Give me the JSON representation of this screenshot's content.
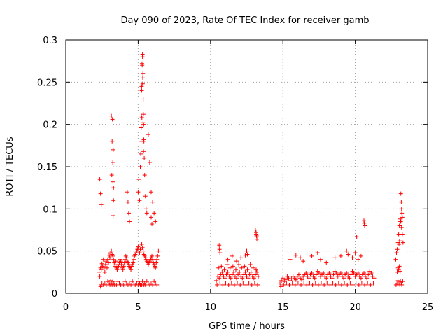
{
  "chart_data": {
    "type": "scatter",
    "title": "Day 090 of 2023, Rate Of TEC Index for receiver gamb",
    "xlabel": "GPS time / hours",
    "ylabel": "ROTI / TECUs",
    "xlim": [
      0,
      25
    ],
    "ylim": [
      0,
      0.3
    ],
    "xticks": [
      0,
      5,
      10,
      15,
      20,
      25
    ],
    "yticks": [
      0,
      0.05,
      0.1,
      0.15,
      0.2,
      0.25,
      0.3
    ],
    "xtick_labels": [
      "0",
      "5",
      "10",
      "15",
      "20",
      "25"
    ],
    "ytick_labels": [
      "0",
      "0.05",
      "0.1",
      "0.15",
      "0.2",
      "0.25",
      "0.3"
    ],
    "grid": true,
    "marker": "+",
    "color": "#ff0000",
    "series": [
      {
        "name": "ROTI",
        "x": [
          2.3,
          2.35,
          2.4,
          2.45,
          2.5,
          2.55,
          2.6,
          2.65,
          2.7,
          2.75,
          2.8,
          2.85,
          2.9,
          2.95,
          3.0,
          3.05,
          3.1,
          3.15,
          3.2,
          3.25,
          3.3,
          3.35,
          3.4,
          3.45,
          3.5,
          3.55,
          3.6,
          3.65,
          3.7,
          3.75,
          3.8,
          3.85,
          3.9,
          3.95,
          4.0,
          4.05,
          4.1,
          4.15,
          4.2,
          4.25,
          4.3,
          4.35,
          4.4,
          4.45,
          4.5,
          4.55,
          4.6,
          4.65,
          4.7,
          4.75,
          4.8,
          4.85,
          4.9,
          4.95,
          5.0,
          5.05,
          5.1,
          5.15,
          5.2,
          5.25,
          5.3,
          5.35,
          5.4,
          5.45,
          5.5,
          5.55,
          5.6,
          5.65,
          5.7,
          5.75,
          5.8,
          5.85,
          5.9,
          5.95,
          6.0,
          6.05,
          6.1,
          6.15,
          6.2,
          6.25,
          6.3,
          6.35,
          6.4,
          2.4,
          2.45,
          2.5,
          2.6,
          2.7,
          2.8,
          2.9,
          3.0,
          3.05,
          3.1,
          3.15,
          3.2,
          3.25,
          3.3,
          3.35,
          3.4,
          3.5,
          3.6,
          3.7,
          3.8,
          3.9,
          4.0,
          4.1,
          4.2,
          4.3,
          4.4,
          4.5,
          4.6,
          4.7,
          4.8,
          4.9,
          5.0,
          5.05,
          5.1,
          5.15,
          5.2,
          5.25,
          5.3,
          5.35,
          5.4,
          5.45,
          5.5,
          5.6,
          5.7,
          5.8,
          5.9,
          6.0,
          6.1,
          6.2,
          6.3,
          2.35,
          2.4,
          2.45,
          3.15,
          3.2,
          3.25,
          3.3,
          3.22,
          3.28,
          3.18,
          3.3,
          4.25,
          4.3,
          4.35,
          4.4,
          5.0,
          5.05,
          5.1,
          5.15,
          5.2,
          5.22,
          5.25,
          5.28,
          5.3,
          5.32,
          5.35,
          5.38,
          5.4,
          5.42,
          5.45,
          5.5,
          5.55,
          5.6,
          5.7,
          5.8,
          5.9,
          6.0,
          6.1,
          6.2,
          3.26,
          3.27,
          5.18,
          5.21,
          5.24,
          5.27,
          5.3,
          5.33,
          5.36,
          5.39,
          5.2,
          5.26,
          5.31,
          5.34,
          5.37,
          5.9,
          5.95,
          10.4,
          10.5,
          10.6,
          10.7,
          10.8,
          10.9,
          11.0,
          11.1,
          11.2,
          11.3,
          11.4,
          11.5,
          11.6,
          11.7,
          11.8,
          11.9,
          12.0,
          12.1,
          12.2,
          12.3,
          12.4,
          12.5,
          12.6,
          12.7,
          12.8,
          12.9,
          13.0,
          13.1,
          13.2,
          13.3,
          10.45,
          10.65,
          10.85,
          11.05,
          11.25,
          11.45,
          11.65,
          11.85,
          12.05,
          12.25,
          12.45,
          12.65,
          12.85,
          13.05,
          13.25,
          10.55,
          10.75,
          10.95,
          11.15,
          11.35,
          11.55,
          11.75,
          11.95,
          12.15,
          12.35,
          12.55,
          12.75,
          12.95,
          13.15,
          10.6,
          10.62,
          10.65,
          11.2,
          11.5,
          11.8,
          12.1,
          12.4,
          12.5,
          12.55,
          13.1,
          13.15,
          13.18,
          13.2,
          13.16,
          14.8,
          14.9,
          15.0,
          15.1,
          15.2,
          15.3,
          15.4,
          15.5,
          15.6,
          15.7,
          15.8,
          15.9,
          16.0,
          16.1,
          16.2,
          16.3,
          16.4,
          16.5,
          16.6,
          16.7,
          16.8,
          16.9,
          17.0,
          17.1,
          17.2,
          17.3,
          17.4,
          17.5,
          17.6,
          17.7,
          17.8,
          17.9,
          18.0,
          18.1,
          18.2,
          18.3,
          18.4,
          18.5,
          18.6,
          18.7,
          18.8,
          18.9,
          19.0,
          19.1,
          19.2,
          19.3,
          19.4,
          19.5,
          19.6,
          19.7,
          19.8,
          19.9,
          20.0,
          20.1,
          20.2,
          20.3,
          20.4,
          20.5,
          20.6,
          20.7,
          20.8,
          20.9,
          21.0,
          21.1,
          21.2,
          21.3,
          14.85,
          15.05,
          15.25,
          15.45,
          15.65,
          15.85,
          16.05,
          16.25,
          16.45,
          16.65,
          16.85,
          17.05,
          17.25,
          17.45,
          17.65,
          17.85,
          18.05,
          18.25,
          18.45,
          18.65,
          18.85,
          19.05,
          19.25,
          19.45,
          19.65,
          19.85,
          20.05,
          20.25,
          20.45,
          20.65,
          20.85,
          21.05,
          21.25,
          15.5,
          15.9,
          16.2,
          16.4,
          17.0,
          17.4,
          17.6,
          18.0,
          18.6,
          19.0,
          19.4,
          19.5,
          19.8,
          20.0,
          20.2,
          20.4,
          20.6,
          20.62,
          20.65,
          20.1,
          22.8,
          22.85,
          22.9,
          22.95,
          23.0,
          23.05,
          23.1,
          23.15,
          23.2,
          23.25,
          23.3,
          22.82,
          22.88,
          22.95,
          23.02,
          23.08,
          23.12,
          23.18,
          23.22,
          23.28,
          22.9,
          22.95,
          23.0,
          23.05,
          23.1,
          23.02,
          23.06,
          23.15,
          23.18,
          23.2,
          23.22,
          23.25,
          23.12,
          23.08
        ],
        "y": [
          0.025,
          0.02,
          0.03,
          0.028,
          0.035,
          0.032,
          0.04,
          0.03,
          0.025,
          0.034,
          0.038,
          0.03,
          0.04,
          0.036,
          0.045,
          0.042,
          0.048,
          0.05,
          0.046,
          0.044,
          0.04,
          0.036,
          0.032,
          0.038,
          0.03,
          0.028,
          0.034,
          0.032,
          0.036,
          0.04,
          0.038,
          0.034,
          0.03,
          0.028,
          0.032,
          0.036,
          0.04,
          0.044,
          0.042,
          0.038,
          0.036,
          0.034,
          0.032,
          0.03,
          0.028,
          0.032,
          0.034,
          0.036,
          0.04,
          0.044,
          0.046,
          0.048,
          0.05,
          0.052,
          0.055,
          0.05,
          0.048,
          0.052,
          0.056,
          0.058,
          0.054,
          0.05,
          0.046,
          0.044,
          0.042,
          0.04,
          0.038,
          0.036,
          0.034,
          0.036,
          0.038,
          0.04,
          0.042,
          0.044,
          0.04,
          0.036,
          0.034,
          0.032,
          0.03,
          0.036,
          0.04,
          0.044,
          0.05,
          0.008,
          0.01,
          0.012,
          0.01,
          0.012,
          0.01,
          0.014,
          0.012,
          0.01,
          0.015,
          0.012,
          0.01,
          0.014,
          0.012,
          0.01,
          0.012,
          0.01,
          0.014,
          0.012,
          0.01,
          0.012,
          0.01,
          0.014,
          0.012,
          0.01,
          0.012,
          0.01,
          0.014,
          0.012,
          0.01,
          0.012,
          0.01,
          0.014,
          0.012,
          0.01,
          0.012,
          0.01,
          0.014,
          0.012,
          0.01,
          0.012,
          0.01,
          0.014,
          0.012,
          0.01,
          0.012,
          0.01,
          0.014,
          0.012,
          0.01,
          0.135,
          0.118,
          0.105,
          0.21,
          0.18,
          0.155,
          0.125,
          0.206,
          0.17,
          0.14,
          0.11,
          0.12,
          0.108,
          0.095,
          0.085,
          0.12,
          0.135,
          0.11,
          0.15,
          0.18,
          0.21,
          0.24,
          0.27,
          0.28,
          0.255,
          0.23,
          0.2,
          0.18,
          0.16,
          0.14,
          0.115,
          0.1,
          0.095,
          0.188,
          0.155,
          0.12,
          0.108,
          0.095,
          0.085,
          0.132,
          0.092,
          0.165,
          0.196,
          0.245,
          0.272,
          0.283,
          0.26,
          0.212,
          0.182,
          0.172,
          0.208,
          0.248,
          0.202,
          0.168,
          0.09,
          0.082,
          0.015,
          0.02,
          0.018,
          0.022,
          0.025,
          0.02,
          0.018,
          0.022,
          0.025,
          0.02,
          0.018,
          0.022,
          0.025,
          0.02,
          0.018,
          0.022,
          0.025,
          0.02,
          0.018,
          0.022,
          0.025,
          0.02,
          0.018,
          0.022,
          0.025,
          0.02,
          0.018,
          0.022,
          0.025,
          0.02,
          0.01,
          0.012,
          0.01,
          0.012,
          0.01,
          0.012,
          0.01,
          0.012,
          0.01,
          0.012,
          0.01,
          0.012,
          0.01,
          0.012,
          0.01,
          0.03,
          0.032,
          0.028,
          0.034,
          0.03,
          0.032,
          0.028,
          0.034,
          0.03,
          0.032,
          0.028,
          0.034,
          0.03,
          0.028,
          0.057,
          0.052,
          0.048,
          0.04,
          0.044,
          0.038,
          0.042,
          0.045,
          0.05,
          0.046,
          0.075,
          0.072,
          0.068,
          0.064,
          0.07,
          0.012,
          0.015,
          0.018,
          0.014,
          0.016,
          0.02,
          0.018,
          0.015,
          0.017,
          0.02,
          0.018,
          0.016,
          0.02,
          0.022,
          0.018,
          0.016,
          0.02,
          0.022,
          0.024,
          0.02,
          0.018,
          0.022,
          0.024,
          0.02,
          0.018,
          0.022,
          0.026,
          0.024,
          0.02,
          0.022,
          0.024,
          0.02,
          0.018,
          0.022,
          0.024,
          0.02,
          0.018,
          0.022,
          0.026,
          0.024,
          0.02,
          0.022,
          0.024,
          0.02,
          0.018,
          0.022,
          0.024,
          0.02,
          0.018,
          0.022,
          0.026,
          0.024,
          0.02,
          0.022,
          0.024,
          0.02,
          0.018,
          0.022,
          0.024,
          0.02,
          0.018,
          0.022,
          0.026,
          0.024,
          0.02,
          0.018,
          0.008,
          0.01,
          0.012,
          0.01,
          0.012,
          0.01,
          0.012,
          0.01,
          0.012,
          0.01,
          0.012,
          0.01,
          0.012,
          0.01,
          0.012,
          0.01,
          0.012,
          0.01,
          0.012,
          0.01,
          0.012,
          0.01,
          0.012,
          0.01,
          0.012,
          0.01,
          0.012,
          0.01,
          0.012,
          0.01,
          0.012,
          0.01,
          0.012,
          0.04,
          0.045,
          0.042,
          0.038,
          0.044,
          0.048,
          0.04,
          0.036,
          0.042,
          0.044,
          0.05,
          0.046,
          0.042,
          0.048,
          0.04,
          0.044,
          0.086,
          0.083,
          0.08,
          0.067,
          0.04,
          0.048,
          0.052,
          0.06,
          0.07,
          0.08,
          0.088,
          0.085,
          0.078,
          0.07,
          0.06,
          0.01,
          0.012,
          0.015,
          0.012,
          0.01,
          0.014,
          0.012,
          0.01,
          0.014,
          0.025,
          0.03,
          0.028,
          0.032,
          0.026,
          0.058,
          0.062,
          0.118,
          0.108,
          0.1,
          0.095,
          0.09,
          0.085,
          0.08
        ]
      }
    ]
  }
}
